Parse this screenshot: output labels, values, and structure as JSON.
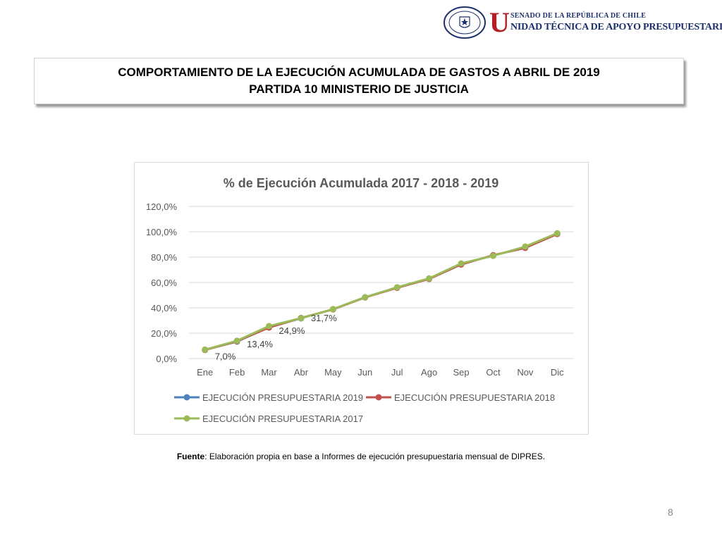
{
  "header": {
    "logo": {
      "seal_text": "REPÚBLICA DE CHILE SENADO",
      "initial": "U",
      "top_line": "SENADO DE LA REPÚBLICA DE CHILE",
      "bottom_line": "NIDAD TÉCNICA DE APOYO PRESUPUESTARIO"
    }
  },
  "title": {
    "line1": "COMPORTAMIENTO DE LA EJECUCIÓN ACUMULADA DE GASTOS A ABRIL DE 2019",
    "line2": "PARTIDA 10 MINISTERIO DE JUSTICIA"
  },
  "chart_data": {
    "type": "line",
    "title": "% de Ejecución Acumulada 2017 - 2018 - 2019",
    "categories": [
      "Ene",
      "Feb",
      "Mar",
      "Abr",
      "May",
      "Jun",
      "Jul",
      "Ago",
      "Sep",
      "Oct",
      "Nov",
      "Dic"
    ],
    "y_ticks": [
      "0,0%",
      "20,0%",
      "40,0%",
      "60,0%",
      "80,0%",
      "100,0%",
      "120,0%"
    ],
    "ylim": [
      0,
      120
    ],
    "grid": true,
    "legend_position": "bottom",
    "series": [
      {
        "name": "EJECUCIÓN PRESUPUESTARIA 2019",
        "color": "#4f81bd",
        "values": [
          7.0,
          13.4,
          24.9,
          31.7,
          null,
          null,
          null,
          null,
          null,
          null,
          null,
          null
        ],
        "labels": [
          "7,0%",
          "13,4%",
          "24,9%",
          "31,7%"
        ]
      },
      {
        "name": "EJECUCIÓN PRESUPUESTARIA 2018",
        "color": "#c0504d",
        "values": [
          6.8,
          13.6,
          24.5,
          32.0,
          38.8,
          48.2,
          55.8,
          62.8,
          74.2,
          81.5,
          87.3,
          98.2
        ]
      },
      {
        "name": "EJECUCIÓN PRESUPUESTARIA 2017",
        "color": "#9bbb59",
        "values": [
          7.0,
          14.0,
          25.6,
          31.8,
          39.0,
          48.4,
          56.2,
          63.2,
          75.0,
          81.0,
          88.3,
          98.8
        ]
      }
    ]
  },
  "source": {
    "label": "Fuente",
    "text": ": Elaboración propia en base  a Informes de ejecución presupuestaria mensual de DIPRES."
  },
  "page_number": "8"
}
